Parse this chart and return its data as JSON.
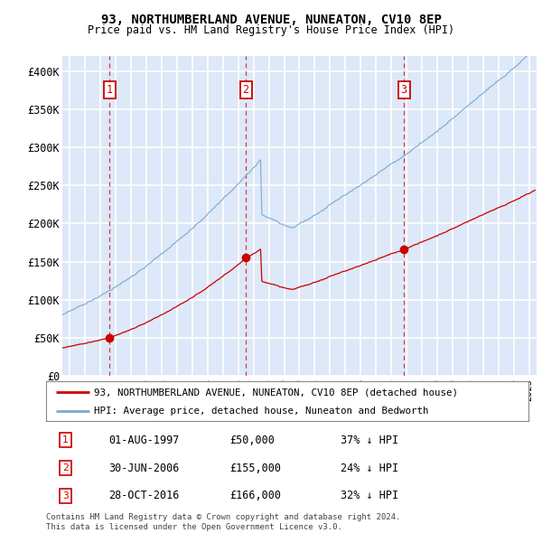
{
  "title": "93, NORTHUMBERLAND AVENUE, NUNEATON, CV10 8EP",
  "subtitle": "Price paid vs. HM Land Registry's House Price Index (HPI)",
  "ylim": [
    0,
    420000
  ],
  "yticks": [
    0,
    50000,
    100000,
    150000,
    200000,
    250000,
    300000,
    350000,
    400000
  ],
  "ytick_labels": [
    "£0",
    "£50K",
    "£100K",
    "£150K",
    "£200K",
    "£250K",
    "£300K",
    "£350K",
    "£400K"
  ],
  "bg_color": "#dde8f8",
  "grid_color": "#ffffff",
  "sale_color": "#cc0000",
  "hpi_color": "#7aaad0",
  "legend_sale_label": "93, NORTHUMBERLAND AVENUE, NUNEATON, CV10 8EP (detached house)",
  "legend_hpi_label": "HPI: Average price, detached house, Nuneaton and Bedworth",
  "table_rows": [
    [
      "1",
      "01-AUG-1997",
      "£50,000",
      "37% ↓ HPI"
    ],
    [
      "2",
      "30-JUN-2006",
      "£155,000",
      "24% ↓ HPI"
    ],
    [
      "3",
      "28-OCT-2016",
      "£166,000",
      "32% ↓ HPI"
    ]
  ],
  "footer": "Contains HM Land Registry data © Crown copyright and database right 2024.\nThis data is licensed under the Open Government Licence v3.0.",
  "xlim_start": 1994.5,
  "xlim_end": 2025.5,
  "sale_dates": [
    1997.583,
    2006.496,
    2016.831
  ],
  "sale_prices": [
    50000,
    155000,
    166000
  ],
  "sale_labels": [
    "1",
    "2",
    "3"
  ]
}
